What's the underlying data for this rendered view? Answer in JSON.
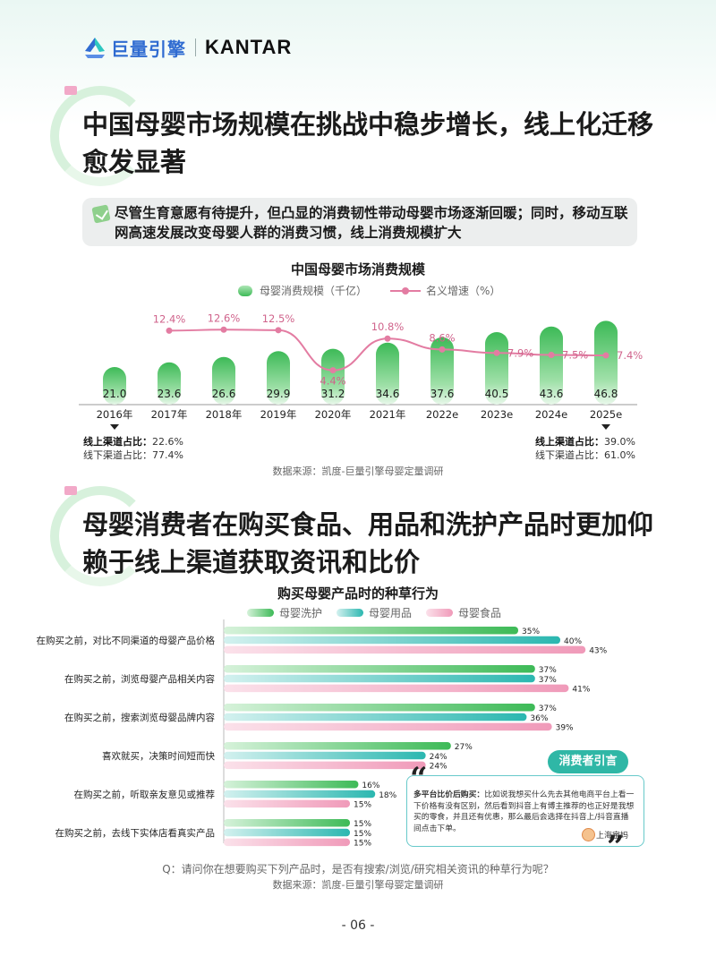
{
  "header": {
    "brand_cn": "巨量引擎",
    "brand_en": "KANTAR"
  },
  "section1": {
    "title": "中国母婴市场规模在挑战中稳步增长，线上化迁移愈发显著",
    "callout": "尽管生育意愿有待提升，但凸显的消费韧性带动母婴市场逐渐回暖；同时，移动互联网高速发展改变母婴人群的消费习惯，线上消费规模扩大"
  },
  "chart1_notes": {
    "left_line1_label": "线上渠道占比：",
    "left_line1_value": "22.6%",
    "left_line2": "线下渠道占比：77.4%",
    "right_line1_label": "线上渠道占比：",
    "right_line1_value": "39.0%",
    "right_line2": "线下渠道占比：61.0%",
    "source": "数据来源：凯度-巨量引擎母婴定量调研"
  },
  "section2": {
    "title": "母婴消费者在购买食品、用品和洗护产品时更加仰赖于线上渠道获取资讯和比价"
  },
  "chart2_notes": {
    "question": "Q：请问你在想要购买下列产品时，是否有搜索/浏览/研究相关资讯的种草行为呢？",
    "source": "数据来源：凯度-巨量引擎母婴定量调研"
  },
  "quote": {
    "tag": "消费者引言",
    "lead": "多平台比价后购买：",
    "text": "比如说我想买什么先去其他电商平台上看一下价格有没有区别，然后看到抖音上有博主推荐的也正好是我想买的零食，并且还有优惠，那么最后会选择在抖音上/抖音直播间点击下单。",
    "author": "上海宝妈"
  },
  "page_number": "- 06 -",
  "chart_data": [
    {
      "type": "bar",
      "title": "中国母婴市场消费规模",
      "categories": [
        "2016年",
        "2017年",
        "2018年",
        "2019年",
        "2020年",
        "2021年",
        "2022e",
        "2023e",
        "2024e",
        "2025e"
      ],
      "series": [
        {
          "name": "母婴消费规模（千亿）",
          "kind": "bar",
          "color": "#3dba57",
          "values": [
            21.0,
            23.6,
            26.6,
            29.9,
            31.2,
            34.6,
            37.6,
            40.5,
            43.6,
            46.8
          ],
          "labels": [
            "21.0",
            "23.6",
            "26.6",
            "29.9",
            "31.2",
            "34.6",
            "37.6",
            "40.5",
            "43.6",
            "46.8"
          ]
        },
        {
          "name": "名义增速（%）",
          "kind": "line",
          "color": "#e37ca2",
          "values": [
            null,
            12.4,
            12.6,
            12.5,
            4.4,
            10.8,
            8.6,
            7.9,
            7.5,
            7.4
          ],
          "labels": [
            "",
            "12.4%",
            "12.6%",
            "12.5%",
            "4.4%",
            "10.8%",
            "8.6%",
            "7.9%",
            "7.5%",
            "7.4%"
          ]
        }
      ],
      "ylim": [
        0,
        50
      ],
      "ylim_right": [
        0,
        20
      ],
      "legend": "top-center"
    },
    {
      "type": "bar",
      "orientation": "horizontal",
      "title": "购买母婴产品时的种草行为",
      "categories": [
        "在购买之前，对比不同渠道的母婴产品价格",
        "在购买之前，浏览母婴产品相关内容",
        "在购买之前，搜索浏览母婴品牌内容",
        "喜欢就买，决策时间短而快",
        "在购买之前，听取亲友意见或推荐",
        "在购买之前，去线下实体店看真实产品"
      ],
      "series": [
        {
          "name": "母婴洗护",
          "color": "#3dba57",
          "values": [
            35,
            37,
            37,
            27,
            16,
            15
          ]
        },
        {
          "name": "母婴用品",
          "color": "#2bb7b0",
          "values": [
            40,
            37,
            36,
            24,
            18,
            15
          ]
        },
        {
          "name": "母婴食品",
          "color": "#f09ab9",
          "values": [
            43,
            41,
            39,
            24,
            15,
            15
          ]
        }
      ],
      "xlim": [
        0,
        50
      ],
      "legend": "top-center"
    }
  ]
}
